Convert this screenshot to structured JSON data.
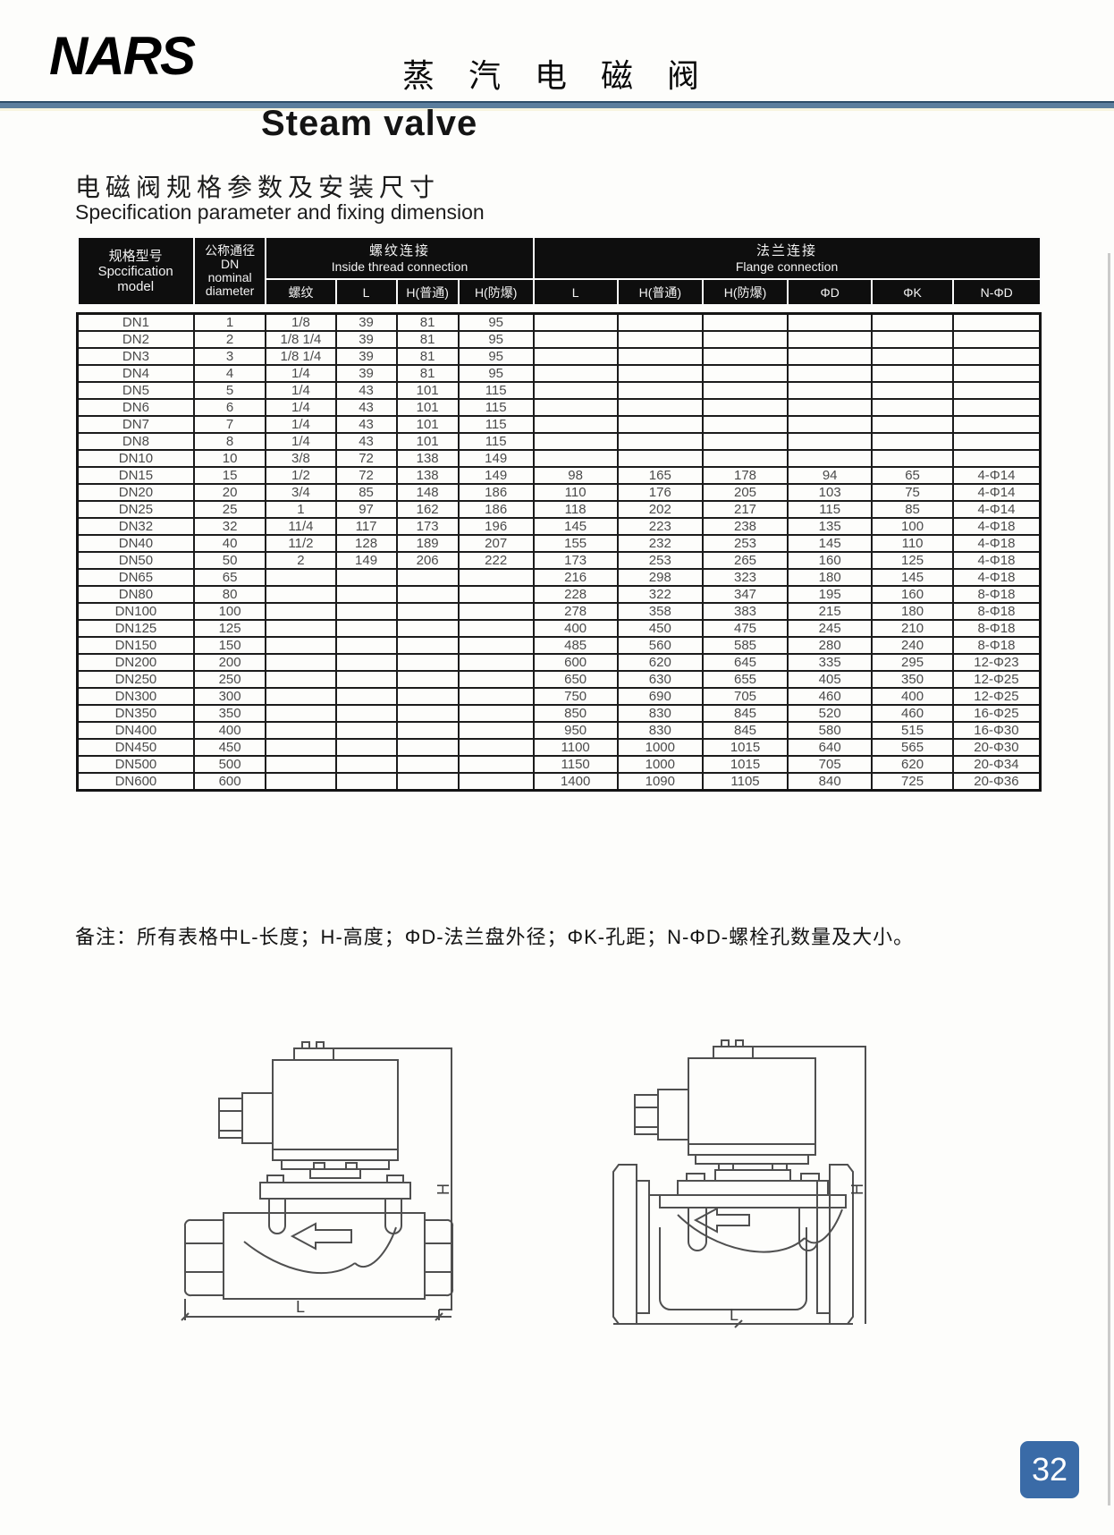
{
  "page": {
    "logo": "NARS",
    "header_title_zh": "蒸 汽 电 磁 阀",
    "title_en": "Steam valve",
    "section_title_zh": "电磁阀规格参数及安装尺寸",
    "section_title_en": "Specification parameter and fixing dimension",
    "note": "备注：所有表格中L-长度；H-高度；ΦD-法兰盘外径；ΦK-孔距；N-ΦD-螺栓孔数量及大小。",
    "page_number": "32",
    "accent_color": "#3a6ba7",
    "divider_color": "#5c7e9d"
  },
  "table": {
    "header": {
      "col_model": {
        "zh": "规格型号",
        "en1": "Spccification",
        "en2": "model"
      },
      "col_dn": {
        "zh": "公称通径",
        "l2": "DN",
        "l3": "nominal",
        "l4": "diameter"
      },
      "group_thread": {
        "zh": "螺纹连接",
        "en": "Inside thread connection"
      },
      "group_flange": {
        "zh": "法兰连接",
        "en": "Flange connection"
      },
      "sub": [
        "螺纹",
        "L",
        "H(普通)",
        "H(防爆)",
        "L",
        "H(普通)",
        "H(防爆)",
        "ΦD",
        "ΦK",
        "N-ΦD"
      ]
    },
    "rows": [
      [
        "DN1",
        "1",
        "1/8",
        "39",
        "81",
        "95",
        "",
        "",
        "",
        "",
        "",
        ""
      ],
      [
        "DN2",
        "2",
        "1/8 1/4",
        "39",
        "81",
        "95",
        "",
        "",
        "",
        "",
        "",
        ""
      ],
      [
        "DN3",
        "3",
        "1/8 1/4",
        "39",
        "81",
        "95",
        "",
        "",
        "",
        "",
        "",
        ""
      ],
      [
        "DN4",
        "4",
        "1/4",
        "39",
        "81",
        "95",
        "",
        "",
        "",
        "",
        "",
        ""
      ],
      [
        "DN5",
        "5",
        "1/4",
        "43",
        "101",
        "115",
        "",
        "",
        "",
        "",
        "",
        ""
      ],
      [
        "DN6",
        "6",
        "1/4",
        "43",
        "101",
        "115",
        "",
        "",
        "",
        "",
        "",
        ""
      ],
      [
        "DN7",
        "7",
        "1/4",
        "43",
        "101",
        "115",
        "",
        "",
        "",
        "",
        "",
        ""
      ],
      [
        "DN8",
        "8",
        "1/4",
        "43",
        "101",
        "115",
        "",
        "",
        "",
        "",
        "",
        ""
      ],
      [
        "DN10",
        "10",
        "3/8",
        "72",
        "138",
        "149",
        "",
        "",
        "",
        "",
        "",
        ""
      ],
      [
        "DN15",
        "15",
        "1/2",
        "72",
        "138",
        "149",
        "98",
        "165",
        "178",
        "94",
        "65",
        "4-Φ14"
      ],
      [
        "DN20",
        "20",
        "3/4",
        "85",
        "148",
        "186",
        "110",
        "176",
        "205",
        "103",
        "75",
        "4-Φ14"
      ],
      [
        "DN25",
        "25",
        "1",
        "97",
        "162",
        "186",
        "118",
        "202",
        "217",
        "115",
        "85",
        "4-Φ14"
      ],
      [
        "DN32",
        "32",
        "11/4",
        "117",
        "173",
        "196",
        "145",
        "223",
        "238",
        "135",
        "100",
        "4-Φ18"
      ],
      [
        "DN40",
        "40",
        "11/2",
        "128",
        "189",
        "207",
        "155",
        "232",
        "253",
        "145",
        "110",
        "4-Φ18"
      ],
      [
        "DN50",
        "50",
        "2",
        "149",
        "206",
        "222",
        "173",
        "253",
        "265",
        "160",
        "125",
        "4-Φ18"
      ],
      [
        "DN65",
        "65",
        "",
        "",
        "",
        "",
        "216",
        "298",
        "323",
        "180",
        "145",
        "4-Φ18"
      ],
      [
        "DN80",
        "80",
        "",
        "",
        "",
        "",
        "228",
        "322",
        "347",
        "195",
        "160",
        "8-Φ18"
      ],
      [
        "DN100",
        "100",
        "",
        "",
        "",
        "",
        "278",
        "358",
        "383",
        "215",
        "180",
        "8-Φ18"
      ],
      [
        "DN125",
        "125",
        "",
        "",
        "",
        "",
        "400",
        "450",
        "475",
        "245",
        "210",
        "8-Φ18"
      ],
      [
        "DN150",
        "150",
        "",
        "",
        "",
        "",
        "485",
        "560",
        "585",
        "280",
        "240",
        "8-Φ18"
      ],
      [
        "DN200",
        "200",
        "",
        "",
        "",
        "",
        "600",
        "620",
        "645",
        "335",
        "295",
        "12-Φ23"
      ],
      [
        "DN250",
        "250",
        "",
        "",
        "",
        "",
        "650",
        "630",
        "655",
        "405",
        "350",
        "12-Φ25"
      ],
      [
        "DN300",
        "300",
        "",
        "",
        "",
        "",
        "750",
        "690",
        "705",
        "460",
        "400",
        "12-Φ25"
      ],
      [
        "DN350",
        "350",
        "",
        "",
        "",
        "",
        "850",
        "830",
        "845",
        "520",
        "460",
        "16-Φ25"
      ],
      [
        "DN400",
        "400",
        "",
        "",
        "",
        "",
        "950",
        "830",
        "845",
        "580",
        "515",
        "16-Φ30"
      ],
      [
        "DN450",
        "450",
        "",
        "",
        "",
        "",
        "1100",
        "1000",
        "1015",
        "640",
        "565",
        "20-Φ30"
      ],
      [
        "DN500",
        "500",
        "",
        "",
        "",
        "",
        "1150",
        "1000",
        "1015",
        "705",
        "620",
        "20-Φ34"
      ],
      [
        "DN600",
        "600",
        "",
        "",
        "",
        "",
        "1400",
        "1090",
        "1105",
        "840",
        "725",
        "20-Φ36"
      ]
    ]
  },
  "drawings": {
    "left": {
      "l_label": "L",
      "h_label": "H"
    },
    "right": {
      "l_label": "L",
      "h_label": "H"
    }
  }
}
